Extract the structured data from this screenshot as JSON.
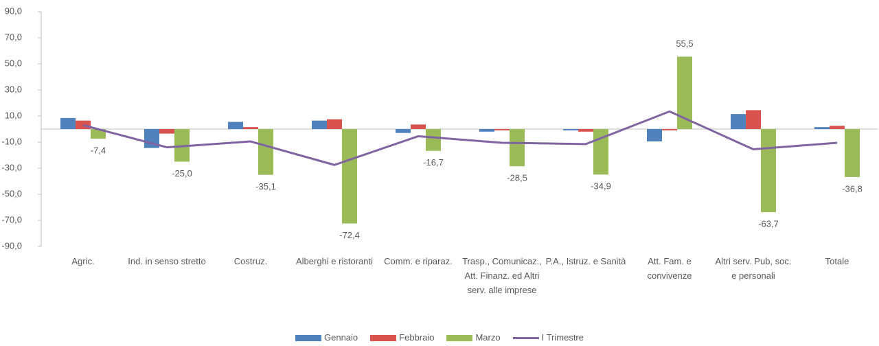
{
  "chart_data": {
    "type": "bar_line",
    "categories": [
      "Agric.",
      "Ind. in senso stretto",
      "Costruz.",
      "Alberghi e ristoranti",
      "Comm. e riparaz.",
      "Trasp., Comunicaz., Att. Finanz. ed Altri serv. alle imprese",
      "P.A., Istruz. e Sanità",
      "Att. Fam. e convivenze",
      "Altri serv. Pub, soc. e personali",
      "Totale"
    ],
    "series": [
      {
        "name": "Gennaio",
        "type": "bar",
        "color": "#4f81bd",
        "values": [
          8.5,
          -14.5,
          5.5,
          6.5,
          -3,
          -2,
          -1,
          -9.5,
          11.5,
          1.5
        ]
      },
      {
        "name": "Febbraio",
        "type": "bar",
        "color": "#d9534f",
        "values": [
          6.5,
          -3.5,
          1.5,
          7.5,
          3.5,
          -1,
          -2,
          -1,
          14.5,
          2.5
        ]
      },
      {
        "name": "Marzo",
        "type": "bar",
        "color": "#9bbb59",
        "values": [
          -7.4,
          -25.0,
          -35.1,
          -72.4,
          -16.7,
          -28.5,
          -34.9,
          55.5,
          -63.7,
          -36.8
        ],
        "value_labels": [
          "-7,4",
          "-25,0",
          "-35,1",
          "-72,4",
          "-16,7",
          "-28,5",
          "-34,9",
          "55,5",
          "-63,7",
          "-36,8"
        ]
      },
      {
        "name": "I Trimestre",
        "type": "line",
        "color": "#8064a2",
        "values": [
          3,
          -14,
          -9.5,
          -27.5,
          -5.5,
          -10.5,
          -11.5,
          13.5,
          -15.5,
          -10.5
        ]
      }
    ],
    "ylim": [
      -90,
      90
    ],
    "yticks": [
      {
        "value": -90,
        "label": "-90,0"
      },
      {
        "value": -70,
        "label": "-70,0"
      },
      {
        "value": -50,
        "label": "-50,0"
      },
      {
        "value": -30,
        "label": "-30,0"
      },
      {
        "value": -10,
        "label": "-10,0"
      },
      {
        "value": 10,
        "label": "10,0"
      },
      {
        "value": 30,
        "label": "30,0"
      },
      {
        "value": 50,
        "label": "50,0"
      },
      {
        "value": 70,
        "label": "70,0"
      },
      {
        "value": 90,
        "label": "90,0"
      }
    ],
    "grid": false
  }
}
